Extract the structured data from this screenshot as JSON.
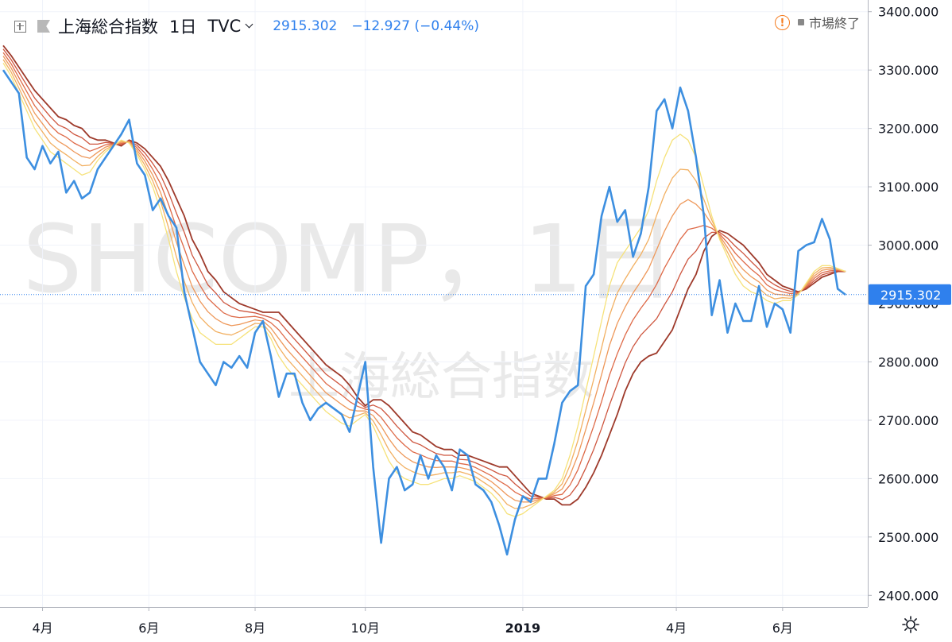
{
  "legend": {
    "symbol_name": "上海総合指数",
    "interval": "1日",
    "source": "TVC",
    "last_value": "2915.302",
    "change": "−12.927 (−0.44%)"
  },
  "status": {
    "label": "市場終了"
  },
  "watermark": {
    "line1": "SHCOMP，1日",
    "line2": "上海総合指数"
  },
  "price_label": "2915.302",
  "colors": {
    "price": "#3d8fe0",
    "last_line": "#2f80ed",
    "ribbon": [
      "#f6e27a",
      "#f5c96a",
      "#f2b062",
      "#ee985a",
      "#e88152",
      "#de6a48",
      "#ce563f",
      "#b84335",
      "#9e3a2b"
    ]
  },
  "chart_data": {
    "type": "line",
    "title": "",
    "xlabel": "",
    "ylabel": "",
    "ylim": [
      2380,
      3420
    ],
    "xlim": [
      0,
      108
    ],
    "y_ticks": [
      {
        "value": 3400,
        "label": "3400.000"
      },
      {
        "value": 3300,
        "label": "3300.000"
      },
      {
        "value": 3200,
        "label": "3200.000"
      },
      {
        "value": 3100,
        "label": "3100.000"
      },
      {
        "value": 3000,
        "label": "3000.000"
      },
      {
        "value": 2900,
        "label": "2900.000"
      },
      {
        "value": 2800,
        "label": "2800.000"
      },
      {
        "value": 2700,
        "label": "2700.000"
      },
      {
        "value": 2600,
        "label": "2600.000"
      },
      {
        "value": 2500,
        "label": "2500.000"
      },
      {
        "value": 2400,
        "label": "2400.000"
      }
    ],
    "x_ticks": [
      {
        "x": 5,
        "label": "4月"
      },
      {
        "x": 18.5,
        "label": "6月"
      },
      {
        "x": 32,
        "label": "8月"
      },
      {
        "x": 46,
        "label": "10月"
      },
      {
        "x": 66,
        "label": "2019"
      },
      {
        "x": 85.5,
        "label": "4月"
      },
      {
        "x": 99,
        "label": "6月"
      }
    ],
    "last_value": 2915.302,
    "grid": true,
    "legend_position": "top-left",
    "series": [
      {
        "type": "line",
        "x": [
          0,
          1,
          2,
          3,
          4,
          5,
          6,
          7,
          8,
          9,
          10,
          11,
          12,
          13,
          14,
          15,
          16,
          17,
          18,
          19,
          20,
          21,
          22,
          23,
          24,
          25,
          26,
          27,
          28,
          29,
          30,
          31,
          32,
          33,
          34,
          35,
          36,
          37,
          38,
          39,
          40,
          41,
          42,
          43,
          44,
          45,
          46,
          47,
          48,
          49,
          50,
          51,
          52,
          53,
          54,
          55,
          56,
          57,
          58,
          59,
          60,
          61,
          62,
          63,
          64,
          65,
          66,
          67,
          68,
          69,
          70,
          71,
          72,
          73,
          74,
          75,
          76,
          77,
          78,
          79,
          80,
          81,
          82,
          83,
          84,
          85,
          86,
          87,
          88,
          89,
          90,
          91,
          92,
          93,
          94,
          95,
          96,
          97,
          98,
          99,
          100,
          101,
          102,
          103,
          104,
          105,
          106,
          107
        ],
        "values": [
          3300,
          3280,
          3260,
          3150,
          3130,
          3170,
          3140,
          3160,
          3090,
          3110,
          3080,
          3090,
          3130,
          3150,
          3170,
          3190,
          3215,
          3140,
          3120,
          3060,
          3080,
          3050,
          3030,
          2920,
          2860,
          2800,
          2780,
          2760,
          2800,
          2790,
          2810,
          2790,
          2850,
          2870,
          2810,
          2740,
          2780,
          2780,
          2730,
          2700,
          2720,
          2730,
          2720,
          2710,
          2680,
          2740,
          2800,
          2620,
          2490,
          2600,
          2620,
          2580,
          2590,
          2640,
          2600,
          2640,
          2620,
          2580,
          2650,
          2640,
          2590,
          2580,
          2560,
          2520,
          2470,
          2530,
          2570,
          2560,
          2600,
          2600,
          2660,
          2730,
          2750,
          2760,
          2930,
          2950,
          3050,
          3100,
          3040,
          3060,
          2980,
          3020,
          3100,
          3230,
          3250,
          3200,
          3270,
          3230,
          3150,
          3050,
          2880,
          2940,
          2850,
          2900,
          2870,
          2870,
          2930,
          2860,
          2900,
          2890,
          2850,
          2990,
          3000,
          3005,
          3045,
          3010,
          2925,
          2915
        ]
      },
      {
        "type": "ma",
        "values": [
          3312,
          3290,
          3260,
          3230,
          3200,
          3180,
          3160,
          3150,
          3140,
          3130,
          3120,
          3125,
          3145,
          3160,
          3170,
          3180,
          3175,
          3155,
          3130,
          3100,
          3060,
          3010,
          2955,
          2910,
          2875,
          2850,
          2840,
          2830,
          2830,
          2830,
          2840,
          2850,
          2860,
          2860,
          2840,
          2810,
          2790,
          2775,
          2760,
          2745,
          2730,
          2715,
          2705,
          2695,
          2690,
          2700,
          2710,
          2690,
          2660,
          2630,
          2610,
          2600,
          2595,
          2590,
          2590,
          2595,
          2600,
          2600,
          2605,
          2600,
          2595,
          2585,
          2575,
          2560,
          2540,
          2535,
          2540,
          2550,
          2560,
          2570,
          2580,
          2600,
          2640,
          2690,
          2750,
          2810,
          2870,
          2930,
          2970,
          2990,
          3010,
          3030,
          3060,
          3110,
          3150,
          3180,
          3190,
          3180,
          3150,
          3100,
          3050,
          3010,
          2980,
          2950,
          2930,
          2920,
          2915,
          2905,
          2900,
          2905,
          2905,
          2915,
          2935,
          2955,
          2965,
          2965,
          2960,
          2955
        ]
      },
      {
        "type": "ma",
        "values": [
          3318,
          3297,
          3269,
          3241,
          3213,
          3194,
          3175,
          3164,
          3155,
          3145,
          3136,
          3137,
          3152,
          3164,
          3171,
          3178,
          3176,
          3159,
          3137,
          3110,
          3075,
          3030,
          2980,
          2938,
          2902,
          2877,
          2863,
          2852,
          2848,
          2846,
          2852,
          2859,
          2866,
          2865,
          2849,
          2825,
          2806,
          2791,
          2776,
          2761,
          2746,
          2731,
          2721,
          2711,
          2704,
          2708,
          2713,
          2699,
          2675,
          2649,
          2630,
          2619,
          2612,
          2607,
          2605,
          2607,
          2610,
          2610,
          2612,
          2608,
          2603,
          2594,
          2585,
          2572,
          2556,
          2549,
          2550,
          2555,
          2562,
          2569,
          2577,
          2591,
          2623,
          2665,
          2717,
          2770,
          2824,
          2879,
          2918,
          2942,
          2964,
          2984,
          3010,
          3051,
          3087,
          3115,
          3130,
          3129,
          3110,
          3078,
          3043,
          3013,
          2988,
          2962,
          2944,
          2933,
          2926,
          2914,
          2908,
          2910,
          2909,
          2916,
          2933,
          2951,
          2961,
          2962,
          2959,
          2955
        ]
      },
      {
        "type": "ma",
        "values": [
          3324,
          3304,
          3278,
          3252,
          3226,
          3208,
          3190,
          3178,
          3170,
          3160,
          3152,
          3149,
          3159,
          3168,
          3172,
          3176,
          3177,
          3163,
          3144,
          3120,
          3090,
          3050,
          3005,
          2966,
          2929,
          2904,
          2886,
          2874,
          2866,
          2862,
          2864,
          2868,
          2872,
          2870,
          2858,
          2840,
          2822,
          2807,
          2792,
          2777,
          2762,
          2747,
          2737,
          2727,
          2718,
          2716,
          2716,
          2708,
          2690,
          2668,
          2650,
          2638,
          2629,
          2624,
          2620,
          2619,
          2620,
          2620,
          2619,
          2616,
          2611,
          2603,
          2595,
          2584,
          2572,
          2563,
          2560,
          2560,
          2564,
          2568,
          2574,
          2582,
          2606,
          2640,
          2684,
          2730,
          2778,
          2828,
          2866,
          2894,
          2918,
          2938,
          2960,
          2992,
          3024,
          3050,
          3070,
          3078,
          3070,
          3056,
          3036,
          3016,
          2996,
          2974,
          2958,
          2946,
          2937,
          2923,
          2916,
          2915,
          2913,
          2917,
          2931,
          2947,
          2957,
          2959,
          2958,
          2955
        ]
      },
      {
        "type": "ma",
        "values": [
          3330,
          3311,
          3287,
          3263,
          3239,
          3222,
          3205,
          3192,
          3185,
          3175,
          3168,
          3161,
          3166,
          3172,
          3173,
          3174,
          3178,
          3167,
          3151,
          3130,
          3105,
          3070,
          3030,
          2994,
          2956,
          2931,
          2909,
          2896,
          2884,
          2878,
          2876,
          2877,
          2878,
          2875,
          2867,
          2855,
          2838,
          2823,
          2808,
          2793,
          2778,
          2763,
          2753,
          2743,
          2732,
          2724,
          2719,
          2717,
          2705,
          2687,
          2670,
          2657,
          2646,
          2641,
          2635,
          2631,
          2630,
          2630,
          2626,
          2624,
          2619,
          2612,
          2605,
          2596,
          2588,
          2577,
          2570,
          2565,
          2566,
          2567,
          2571,
          2573,
          2589,
          2615,
          2651,
          2690,
          2732,
          2777,
          2814,
          2846,
          2872,
          2892,
          2910,
          2933,
          2961,
          2985,
          3010,
          3027,
          3030,
          3034,
          3029,
          3019,
          3004,
          2986,
          2972,
          2959,
          2948,
          2932,
          2924,
          2920,
          2917,
          2918,
          2929,
          2943,
          2953,
          2956,
          2957,
          2955
        ]
      },
      {
        "type": "ma",
        "values": [
          3336,
          3318,
          3296,
          3274,
          3252,
          3236,
          3220,
          3206,
          3200,
          3190,
          3184,
          3173,
          3173,
          3176,
          3174,
          3172,
          3179,
          3171,
          3158,
          3140,
          3120,
          3090,
          3055,
          3022,
          2983,
          2958,
          2932,
          2918,
          2902,
          2894,
          2888,
          2886,
          2884,
          2880,
          2876,
          2870,
          2854,
          2839,
          2824,
          2809,
          2794,
          2779,
          2769,
          2759,
          2746,
          2732,
          2722,
          2726,
          2720,
          2706,
          2690,
          2676,
          2663,
          2658,
          2650,
          2643,
          2640,
          2640,
          2633,
          2632,
          2627,
          2621,
          2615,
          2608,
          2604,
          2591,
          2580,
          2570,
          2568,
          2566,
          2568,
          2564,
          2572,
          2590,
          2618,
          2650,
          2686,
          2726,
          2762,
          2798,
          2826,
          2846,
          2860,
          2874,
          2898,
          2920,
          2950,
          2976,
          2990,
          3012,
          3022,
          3022,
          3012,
          2998,
          2986,
          2972,
          2959,
          2941,
          2932,
          2925,
          2921,
          2919,
          2927,
          2939,
          2949,
          2953,
          2956,
          2955
        ]
      },
      {
        "type": "ma",
        "values": [
          3342,
          3325,
          3305,
          3285,
          3265,
          3250,
          3235,
          3220,
          3215,
          3205,
          3200,
          3185,
          3180,
          3180,
          3175,
          3170,
          3180,
          3175,
          3165,
          3150,
          3135,
          3110,
          3080,
          3050,
          3010,
          2985,
          2955,
          2940,
          2920,
          2910,
          2900,
          2895,
          2890,
          2885,
          2885,
          2885,
          2870,
          2855,
          2840,
          2825,
          2810,
          2795,
          2785,
          2775,
          2760,
          2740,
          2725,
          2735,
          2735,
          2725,
          2710,
          2695,
          2680,
          2675,
          2665,
          2655,
          2650,
          2650,
          2640,
          2640,
          2635,
          2630,
          2625,
          2620,
          2620,
          2605,
          2590,
          2575,
          2570,
          2565,
          2565,
          2555,
          2555,
          2565,
          2585,
          2610,
          2640,
          2675,
          2710,
          2750,
          2780,
          2800,
          2810,
          2815,
          2835,
          2855,
          2890,
          2925,
          2950,
          2990,
          3015,
          3025,
          3020,
          3010,
          3000,
          2985,
          2970,
          2950,
          2940,
          2930,
          2925,
          2920,
          2925,
          2935,
          2945,
          2950,
          2955,
          2955
        ]
      }
    ]
  }
}
